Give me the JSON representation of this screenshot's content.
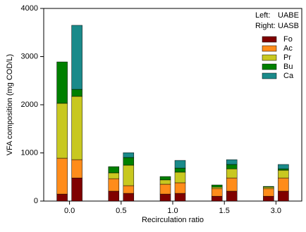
{
  "chart_data": {
    "type": "grouped-stacked-bar",
    "x_label": "Recirculation ratio",
    "y_label": "VFA composition (mg COD/L)",
    "group_labels": [
      {
        "position": "Left:",
        "name": "UABE"
      },
      {
        "position": "Right:",
        "name": "UASB"
      }
    ],
    "categories": [
      "0.0",
      "0.5",
      "1.0",
      "1.5",
      "3.0"
    ],
    "series": [
      {
        "name": "Fo",
        "color": "#800000",
        "values": [
          [
            145,
            480
          ],
          [
            205,
            160
          ],
          [
            145,
            160
          ],
          [
            100,
            205
          ],
          [
            100,
            205
          ]
        ]
      },
      {
        "name": "Ac",
        "color": "#ff8c1a",
        "values": [
          [
            745,
            380
          ],
          [
            260,
            160
          ],
          [
            205,
            220
          ],
          [
            160,
            275
          ],
          [
            160,
            275
          ]
        ]
      },
      {
        "name": "Pr",
        "color": "#c8c820",
        "values": [
          [
            1140,
            1315
          ],
          [
            120,
            425
          ],
          [
            90,
            220
          ],
          [
            30,
            190
          ],
          [
            30,
            160
          ]
        ]
      },
      {
        "name": "Bu",
        "color": "#008000",
        "values": [
          [
            860,
            145
          ],
          [
            130,
            160
          ],
          [
            70,
            85
          ],
          [
            45,
            90
          ],
          [
            15,
            30
          ]
        ]
      },
      {
        "name": "Ca",
        "color": "#1a8a8a",
        "values": [
          [
            0,
            1330
          ],
          [
            0,
            100
          ],
          [
            0,
            160
          ],
          [
            0,
            100
          ],
          [
            0,
            90
          ]
        ]
      }
    ],
    "ylim": [
      0,
      4000
    ],
    "yticks": [
      0,
      1000,
      2000,
      3000,
      4000
    ]
  }
}
